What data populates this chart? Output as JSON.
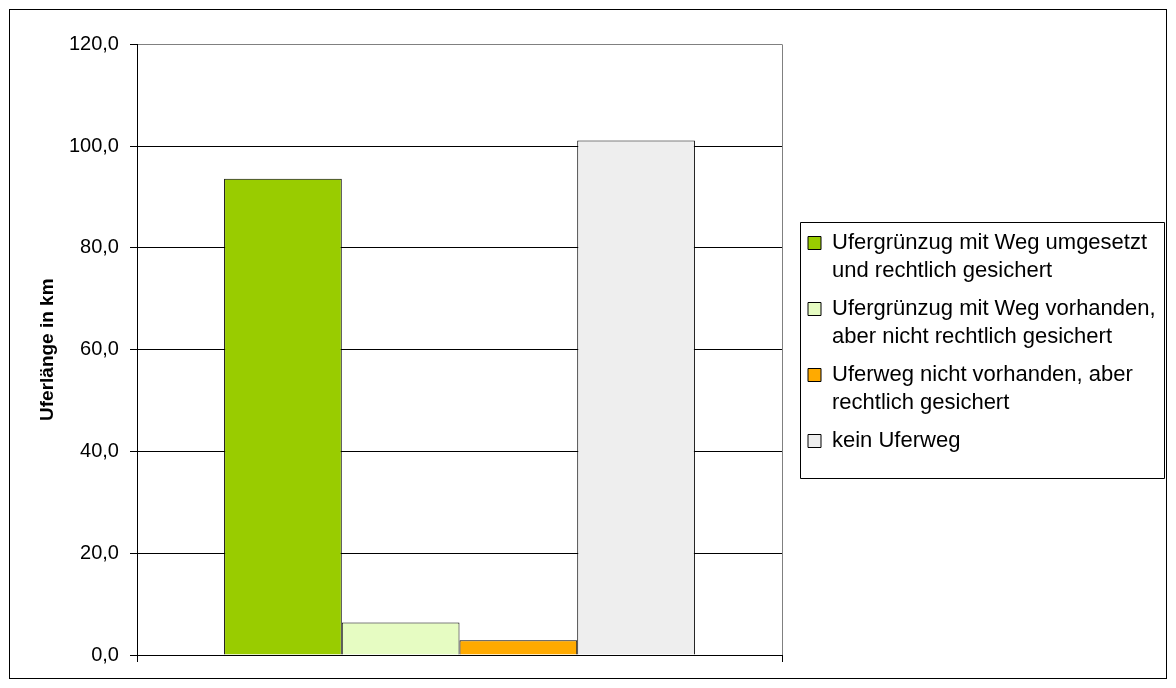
{
  "chart_data": {
    "type": "bar",
    "ylabel": "Uferlänge in km",
    "categories": [
      null
    ],
    "series": [
      {
        "name": "Ufergrünzug mit Weg umgesetzt und rechtlich gesichert",
        "color": "#99cc00",
        "values": [
          93.6
        ]
      },
      {
        "name": "Ufergrünzug mit Weg vorhanden, aber nicht rechtlich gesichert",
        "color": "#e6fcc2",
        "values": [
          6.4
        ]
      },
      {
        "name": "Uferweg nicht vorhanden, aber rechtlich gesichert",
        "color": "#ffaa00",
        "values": [
          2.9
        ]
      },
      {
        "name": "kein Uferweg",
        "color": "#eeeeee",
        "values": [
          101.1
        ]
      }
    ],
    "ylim": [
      0,
      120
    ],
    "yticks": [
      {
        "value": 0,
        "label": "0,0"
      },
      {
        "value": 20,
        "label": "20,0"
      },
      {
        "value": 40,
        "label": "40,0"
      },
      {
        "value": 60,
        "label": "60,0"
      },
      {
        "value": 80,
        "label": "80,0"
      },
      {
        "value": 100,
        "label": "100,0"
      },
      {
        "value": 120,
        "label": "120,0"
      }
    ],
    "grid": "y",
    "legend": "right",
    "tick_labels": "y"
  }
}
